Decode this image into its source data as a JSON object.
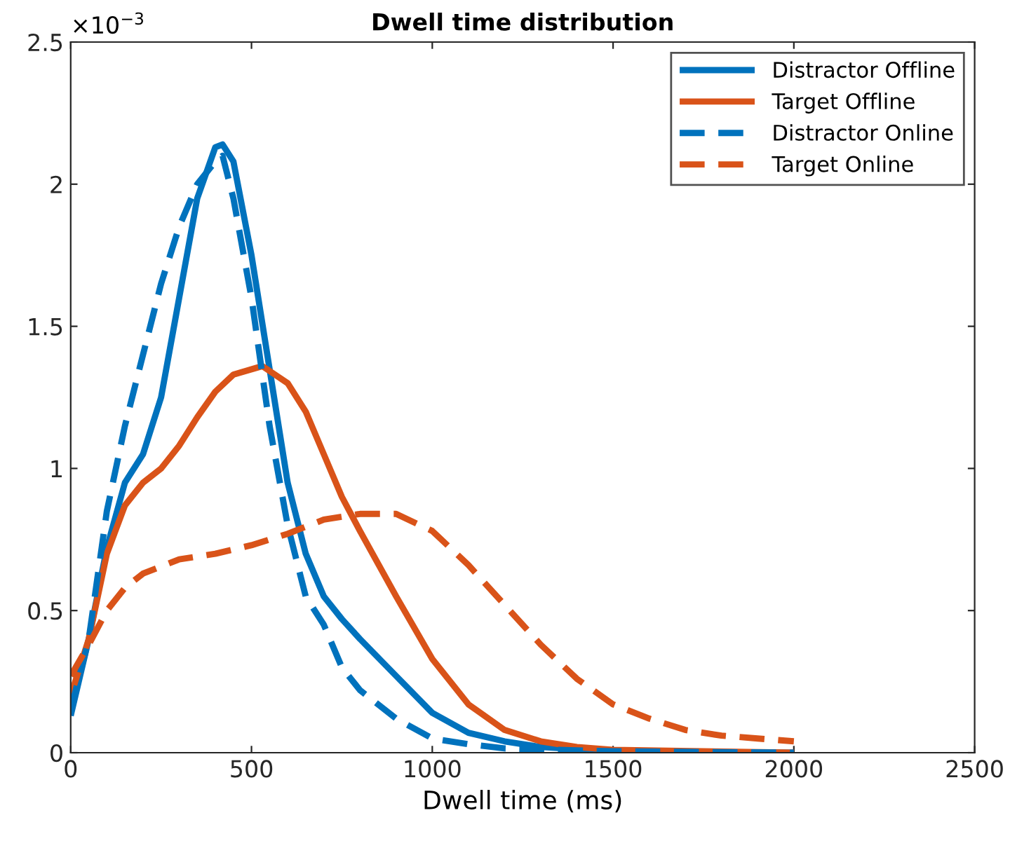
{
  "chart_data": {
    "type": "line",
    "title": "Dwell time distribution",
    "xlabel": "Dwell time (ms)",
    "annotations": [
      "×10$^{−3}$"
    ],
    "xlim": [
      0,
      2500
    ],
    "xticks": [
      0,
      500,
      1000,
      1500,
      2000,
      2500
    ],
    "ylim": [
      0,
      2.5
    ],
    "yticks": [
      0,
      0.5,
      1,
      1.5,
      2,
      2.5
    ],
    "grid": false,
    "legend": "top right",
    "series": [
      {
        "name": "Distractor Offline",
        "color": "#0072bd",
        "line_style": "solid",
        "x": [
          0,
          50,
          100,
          150,
          200,
          250,
          300,
          350,
          400,
          420,
          450,
          500,
          550,
          600,
          650,
          700,
          750,
          800,
          900,
          1000,
          1100,
          1200,
          1300,
          1500,
          2000
        ],
        "values": [
          0.13,
          0.4,
          0.72,
          0.95,
          1.05,
          1.25,
          1.6,
          1.95,
          2.13,
          2.14,
          2.08,
          1.75,
          1.35,
          0.95,
          0.7,
          0.55,
          0.47,
          0.4,
          0.27,
          0.14,
          0.07,
          0.04,
          0.02,
          0.005,
          0
        ]
      },
      {
        "name": "Target Offline",
        "color": "#d95319",
        "line_style": "solid",
        "x": [
          0,
          50,
          100,
          150,
          200,
          250,
          300,
          350,
          400,
          450,
          530,
          600,
          650,
          700,
          750,
          800,
          900,
          1000,
          1100,
          1200,
          1300,
          1400,
          1500,
          2000
        ],
        "values": [
          0.2,
          0.4,
          0.7,
          0.87,
          0.95,
          1.0,
          1.08,
          1.18,
          1.27,
          1.33,
          1.36,
          1.3,
          1.2,
          1.05,
          0.9,
          0.78,
          0.55,
          0.33,
          0.17,
          0.08,
          0.04,
          0.02,
          0.01,
          0
        ]
      },
      {
        "name": "Distractor Online",
        "color": "#0072bd",
        "line_style": "dashed",
        "x": [
          0,
          50,
          100,
          150,
          200,
          250,
          300,
          350,
          400,
          420,
          450,
          500,
          550,
          600,
          650,
          700,
          750,
          800,
          900,
          1000,
          1100,
          1200,
          1500,
          2000
        ],
        "values": [
          0.15,
          0.4,
          0.85,
          1.15,
          1.4,
          1.65,
          1.85,
          2.0,
          2.08,
          2.1,
          1.95,
          1.6,
          1.15,
          0.8,
          0.55,
          0.45,
          0.3,
          0.22,
          0.12,
          0.05,
          0.03,
          0.015,
          0.005,
          0
        ]
      },
      {
        "name": "Target Online",
        "color": "#d95319",
        "line_style": "dashed",
        "x": [
          0,
          50,
          100,
          150,
          200,
          300,
          400,
          500,
          600,
          700,
          800,
          900,
          1000,
          1100,
          1200,
          1300,
          1400,
          1500,
          1600,
          1700,
          1800,
          1900,
          2000
        ],
        "values": [
          0.27,
          0.38,
          0.5,
          0.58,
          0.63,
          0.68,
          0.7,
          0.73,
          0.77,
          0.82,
          0.84,
          0.84,
          0.78,
          0.66,
          0.52,
          0.38,
          0.26,
          0.17,
          0.12,
          0.08,
          0.06,
          0.05,
          0.04
        ]
      }
    ]
  }
}
